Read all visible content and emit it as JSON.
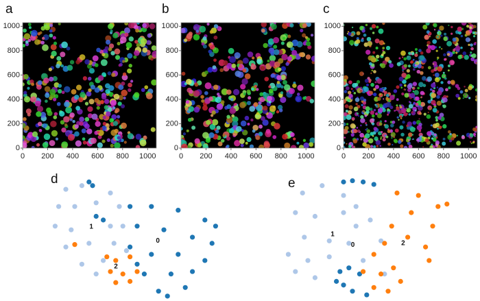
{
  "chart_data": [
    {
      "type": "image",
      "label": "a",
      "xlim": [
        0,
        1070
      ],
      "ylim": [
        0,
        1030
      ],
      "xticks": [
        0,
        200,
        400,
        600,
        800,
        1000
      ],
      "yticks": [
        0,
        200,
        400,
        600,
        800,
        1000
      ]
    },
    {
      "type": "image",
      "label": "b",
      "xlim": [
        0,
        1070
      ],
      "ylim": [
        0,
        1030
      ],
      "xticks": [
        0,
        200,
        400,
        600,
        800,
        1000
      ],
      "yticks": [
        0,
        200,
        400,
        600,
        800,
        1000
      ]
    },
    {
      "type": "image",
      "label": "c",
      "xlim": [
        0,
        1070
      ],
      "ylim": [
        0,
        1030
      ],
      "xticks": [
        0,
        200,
        400,
        600,
        800,
        1000
      ],
      "yticks": [
        0,
        200,
        400,
        600,
        800,
        1000
      ]
    },
    {
      "type": "scatter",
      "label": "d",
      "xlim": [
        0,
        100
      ],
      "ylim": [
        0,
        100
      ],
      "series": [
        {
          "name": "0",
          "color": "#1f77b4",
          "x": [
            23,
            25,
            46,
            58,
            73,
            88,
            94,
            50,
            65,
            81,
            92,
            46,
            58,
            73,
            88,
            54,
            69,
            81,
            62,
            67,
            50,
            77,
            27,
            31
          ],
          "values": [
            97,
            94,
            77,
            77,
            74,
            66,
            61,
            61,
            58,
            52,
            47,
            44,
            38,
            38,
            33,
            22,
            22,
            24,
            8,
            4,
            30,
            11,
            69,
            66
          ]
        },
        {
          "name": "1",
          "color": "#aec7e8",
          "x": [
            10,
            19,
            35,
            40,
            6,
            15,
            27,
            4,
            13,
            35,
            42,
            10,
            23,
            37,
            19,
            31,
            44,
            27
          ],
          "values": [
            91,
            94,
            88,
            77,
            77,
            77,
            80,
            61,
            58,
            61,
            61,
            44,
            47,
            47,
            30,
            33,
            41,
            22
          ]
        },
        {
          "name": "2",
          "color": "#ff7f0e",
          "x": [
            33,
            38,
            46,
            35,
            42,
            50,
            38,
            46,
            15
          ],
          "values": [
            36,
            33,
            36,
            24,
            22,
            24,
            15,
            16,
            46
          ]
        }
      ]
    },
    {
      "type": "scatter",
      "label": "e",
      "xlim": [
        0,
        100
      ],
      "ylim": [
        0,
        100
      ],
      "series": [
        {
          "name": "0",
          "color": "#1f77b4",
          "x": [
            35,
            40,
            46,
            52,
            33,
            38,
            44,
            35,
            40,
            48,
            31
          ],
          "values": [
            97,
            98,
            97,
            95,
            24,
            27,
            22,
            13,
            8,
            5,
            16
          ]
        },
        {
          "name": "1",
          "color": "#aec7e8",
          "x": [
            12,
            23,
            35,
            8,
            19,
            35,
            42,
            13,
            27,
            38,
            4,
            15,
            27,
            8,
            19,
            42,
            50,
            56,
            46,
            58
          ],
          "values": [
            88,
            94,
            86,
            72,
            69,
            72,
            61,
            52,
            49,
            47,
            38,
            33,
            36,
            24,
            19,
            77,
            66,
            49,
            33,
            22
          ]
        },
        {
          "name": "2",
          "color": "#ff7f0e",
          "x": [
            65,
            77,
            88,
            93,
            73,
            85,
            62,
            71,
            81,
            83,
            58,
            52,
            46,
            56,
            63,
            52,
            60,
            67
          ],
          "values": [
            88,
            86,
            77,
            79,
            72,
            61,
            61,
            52,
            44,
            33,
            47,
            38,
            24,
            22,
            27,
            11,
            8,
            16
          ]
        }
      ]
    }
  ]
}
